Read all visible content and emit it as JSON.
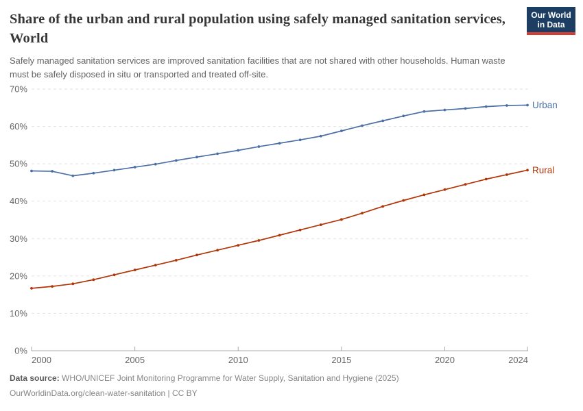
{
  "header": {
    "title": "Share of the urban and rural population using safely managed sanitation services, World",
    "subtitle": "Safely managed sanitation services are improved sanitation facilities that are not shared with other households. Human waste must be safely disposed in situ or transported and treated off-site.",
    "logo": {
      "line1": "Our World",
      "line2": "in Data"
    }
  },
  "colors": {
    "urban_blue": "#4C6FA5",
    "rural_red": "#B13507",
    "logo_navy": "#1d3d63",
    "logo_red": "#d63d32",
    "gridline": "#e2e2e2",
    "axis": "#a8a8a8",
    "tick_text": "#666666"
  },
  "chart_data": {
    "type": "line",
    "title": "Share of the urban and rural population using safely managed sanitation services, World",
    "xlabel": "",
    "ylabel": "",
    "x": [
      2000,
      2001,
      2002,
      2003,
      2004,
      2005,
      2006,
      2007,
      2008,
      2009,
      2010,
      2011,
      2012,
      2013,
      2014,
      2015,
      2016,
      2017,
      2018,
      2019,
      2020,
      2021,
      2022,
      2023,
      2024
    ],
    "series": [
      {
        "name": "Urban",
        "color": "#4C6FA5",
        "values": [
          48.1,
          48.0,
          46.8,
          47.5,
          48.3,
          49.1,
          49.9,
          50.9,
          51.8,
          52.7,
          53.6,
          54.6,
          55.5,
          56.4,
          57.4,
          58.8,
          60.2,
          61.5,
          62.8,
          64.0,
          64.4,
          64.8,
          65.3,
          65.6,
          65.7
        ]
      },
      {
        "name": "Rural",
        "color": "#B13507",
        "values": [
          16.7,
          17.2,
          17.9,
          19.0,
          20.3,
          21.6,
          22.9,
          24.2,
          25.6,
          26.9,
          28.2,
          29.5,
          30.9,
          32.3,
          33.7,
          35.1,
          36.8,
          38.6,
          40.2,
          41.7,
          43.1,
          44.5,
          45.9,
          47.1,
          48.3
        ]
      }
    ],
    "ylim": [
      0,
      70
    ],
    "ytick_step": 10,
    "ytick_suffix": "%",
    "xticks": [
      2000,
      2005,
      2010,
      2015,
      2020,
      2024
    ],
    "grid": "horizontal-dashed",
    "legend": "end-of-line-labels"
  },
  "footer": {
    "source_label": "Data source:",
    "source_text": " WHO/UNICEF Joint Monitoring Programme for Water Supply, Sanitation and Hygiene (2025)",
    "line2": "OurWorldinData.org/clean-water-sanitation | CC BY"
  }
}
